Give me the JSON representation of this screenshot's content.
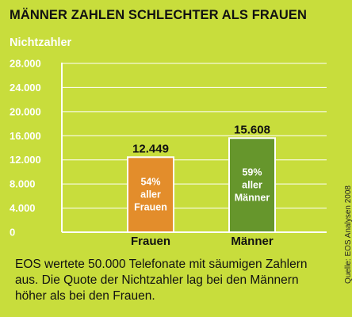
{
  "header": {
    "title": "MÄNNER ZAHLEN SCHLECHTER ALS FRAUEN",
    "subtitle": "Nichtzahler"
  },
  "caption": "EOS wertete 50.000 Telefonate mit säumigen Zahlern aus. Die Quote der Nichtzahler lag bei den Männern höher als bei den Frauen.",
  "source": "Quelle: EOS Analysen 2008",
  "colors": {
    "background": "#c8dd3c",
    "frauen_bar": "#e38d2b",
    "maenner_bar": "#66962c",
    "bar_border": "#ffffff",
    "grid": "#ffffff"
  },
  "chart_data": {
    "type": "bar",
    "ylabel": "Nichtzahler",
    "ylim": [
      0,
      28000
    ],
    "yticks": [
      0,
      4000,
      8000,
      12000,
      16000,
      20000,
      24000,
      28000
    ],
    "ytick_labels": [
      "0",
      "4.000",
      "8.000",
      "12.000",
      "16.000",
      "20.000",
      "24.000",
      "28.000"
    ],
    "grid": true,
    "categories": [
      "Frauen",
      "Männer"
    ],
    "values": [
      12449,
      15608
    ],
    "value_labels": [
      "12.449",
      "15.608"
    ],
    "bar_labels": [
      [
        "54%",
        "aller",
        "Frauen"
      ],
      [
        "59%",
        "aller",
        "Männer"
      ]
    ]
  }
}
